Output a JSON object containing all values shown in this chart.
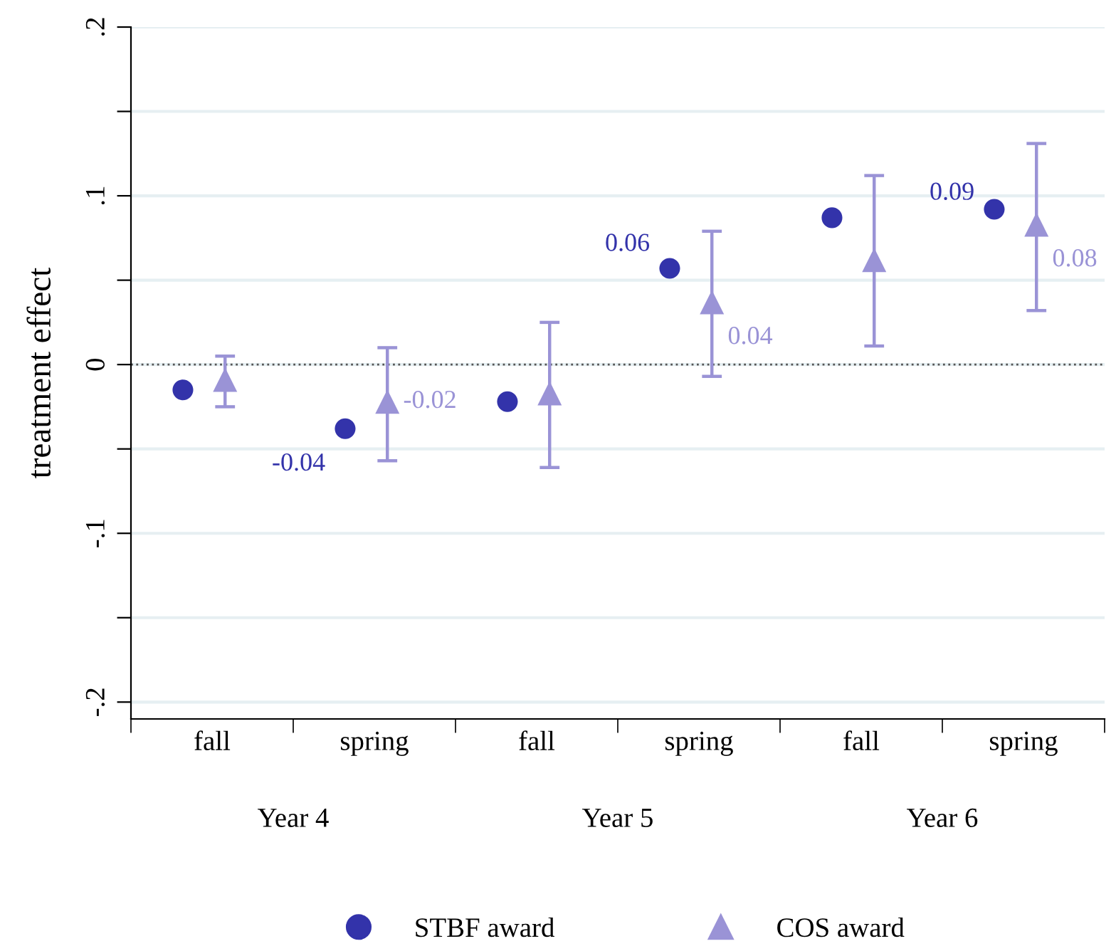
{
  "chart_data": {
    "type": "scatter",
    "ylabel": "treatment effect",
    "categories": [
      "fall",
      "spring",
      "fall",
      "spring",
      "fall",
      "spring"
    ],
    "series": [
      {
        "name": "STBF award",
        "color": "#3333aa",
        "marker": "circle",
        "values": [
          -0.015,
          -0.038,
          -0.022,
          0.057,
          0.087,
          0.092
        ],
        "value_labels": [
          null,
          "-0.04",
          null,
          "0.06",
          null,
          "0.09"
        ]
      },
      {
        "name": "COS award",
        "color": "#9a93d6",
        "marker": "triangle",
        "values": [
          -0.009,
          -0.022,
          -0.017,
          0.037,
          0.062,
          0.083
        ],
        "errors": [
          [
            -0.025,
            0.005
          ],
          [
            -0.057,
            0.01
          ],
          [
            -0.061,
            0.025
          ],
          [
            -0.007,
            0.079
          ],
          [
            0.011,
            0.112
          ],
          [
            0.032,
            0.131
          ]
        ],
        "value_labels": [
          null,
          "-0.02",
          null,
          "0.04",
          null,
          "0.08"
        ]
      }
    ],
    "ylim": [
      -0.21,
      0.2
    ],
    "yticks": [
      {
        "value": -0.2,
        "label": "-.2"
      },
      {
        "value": -0.15,
        "label": null
      },
      {
        "value": -0.1,
        "label": "-.1"
      },
      {
        "value": -0.05,
        "label": null
      },
      {
        "value": 0,
        "label": "0"
      },
      {
        "value": 0.05,
        "label": null
      },
      {
        "value": 0.1,
        "label": ".1"
      },
      {
        "value": 0.15,
        "label": null
      },
      {
        "value": 0.2,
        "label": ".2"
      }
    ],
    "ref_lines": [
      {
        "axis": "y",
        "value": 0,
        "color": "#555555",
        "line_style": "dotted"
      }
    ],
    "annotations": [
      "Year 4",
      "Year 5",
      "Year 6"
    ],
    "grid": "y",
    "legend": "bottom"
  }
}
